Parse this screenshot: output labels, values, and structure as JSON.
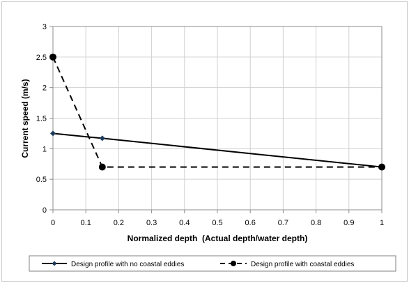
{
  "chart_data": {
    "type": "line",
    "title": "",
    "xlabel": "Normalized depth  (Actual depth/water depth)",
    "ylabel": "Current speed  (m/s)",
    "xlim": [
      0,
      1
    ],
    "ylim": [
      0,
      3
    ],
    "grid": true,
    "legend_position": "bottom",
    "x_ticks": [
      "0",
      "0.1",
      "0.2",
      "0.3",
      "0.4",
      "0.5",
      "0.6",
      "0.7",
      "0.8",
      "0.9",
      "1"
    ],
    "y_ticks": [
      "0",
      "0.5",
      "1",
      "1.5",
      "2",
      "2.5",
      "3"
    ],
    "series": [
      {
        "name": "Design profile with no coastal eddies",
        "x": [
          0,
          0.15,
          1
        ],
        "y": [
          1.25,
          1.17,
          0.7
        ],
        "line_style": "solid",
        "marker": "diamond",
        "color": "#000000",
        "marker_color": "#1f3b5c"
      },
      {
        "name": "Design profile with coastal eddies",
        "x": [
          0,
          0.15,
          1
        ],
        "y": [
          2.5,
          0.7,
          0.7
        ],
        "line_style": "dashed",
        "marker": "circle",
        "color": "#000000",
        "marker_color": "#000000"
      }
    ]
  }
}
